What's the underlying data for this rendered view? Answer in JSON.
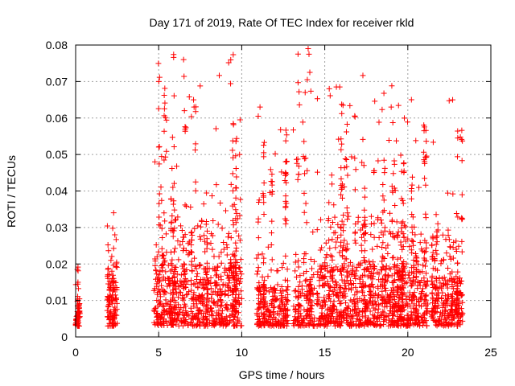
{
  "chart_data": {
    "type": "scatter",
    "title": "Day 171 of 2019, Rate Of TEC Index for receiver rkld",
    "xlabel": "GPS time / hours",
    "ylabel": "ROTI / TECUs",
    "xlim": [
      0,
      25
    ],
    "ylim": [
      0,
      0.08
    ],
    "xticks": [
      0,
      5,
      10,
      15,
      20,
      25
    ],
    "xtick_labels": [
      "0",
      "5",
      "10",
      "15",
      "20",
      "25"
    ],
    "yticks": [
      0,
      0.01,
      0.02,
      0.03,
      0.04,
      0.05,
      0.06,
      0.07,
      0.08
    ],
    "ytick_labels": [
      "0",
      "0.01",
      "0.02",
      "0.03",
      "0.04",
      "0.05",
      "0.06",
      "0.07",
      "0.08"
    ],
    "grid": true,
    "marker": "+",
    "color": "#ff0000",
    "clusters": [
      {
        "t_start": 0.0,
        "t_end": 0.25,
        "base_max": 0.012,
        "peak": 0.016,
        "count": 40
      },
      {
        "t_start": 1.9,
        "t_end": 2.5,
        "base_max": 0.022,
        "peak": 0.036,
        "count": 90
      },
      {
        "t_start": 4.7,
        "t_end": 10.0,
        "base_max": 0.03,
        "peak": 0.076,
        "count": 650
      },
      {
        "t_start": 10.9,
        "t_end": 12.8,
        "base_max": 0.02,
        "peak": 0.063,
        "count": 200
      },
      {
        "t_start": 13.1,
        "t_end": 14.4,
        "base_max": 0.02,
        "peak": 0.079,
        "count": 130
      },
      {
        "t_start": 14.5,
        "t_end": 21.2,
        "base_max": 0.03,
        "peak": 0.069,
        "count": 850
      },
      {
        "t_start": 21.4,
        "t_end": 23.3,
        "base_max": 0.025,
        "peak": 0.065,
        "count": 230
      }
    ],
    "notable_points": [
      {
        "x": 6.5,
        "y": 0.076
      },
      {
        "x": 14.0,
        "y": 0.079
      },
      {
        "x": 14.05,
        "y": 0.0775
      },
      {
        "x": 13.95,
        "y": 0.0705
      },
      {
        "x": 14.1,
        "y": 0.0725
      },
      {
        "x": 15.7,
        "y": 0.0685
      },
      {
        "x": 15.9,
        "y": 0.0685
      },
      {
        "x": 11.1,
        "y": 0.063
      },
      {
        "x": 22.7,
        "y": 0.065
      },
      {
        "x": 19.0,
        "y": 0.063
      },
      {
        "x": 7.1,
        "y": 0.065
      },
      {
        "x": 9.9,
        "y": 0.0595
      },
      {
        "x": 6.55,
        "y": 0.062
      },
      {
        "x": 16.1,
        "y": 0.0635
      }
    ]
  }
}
